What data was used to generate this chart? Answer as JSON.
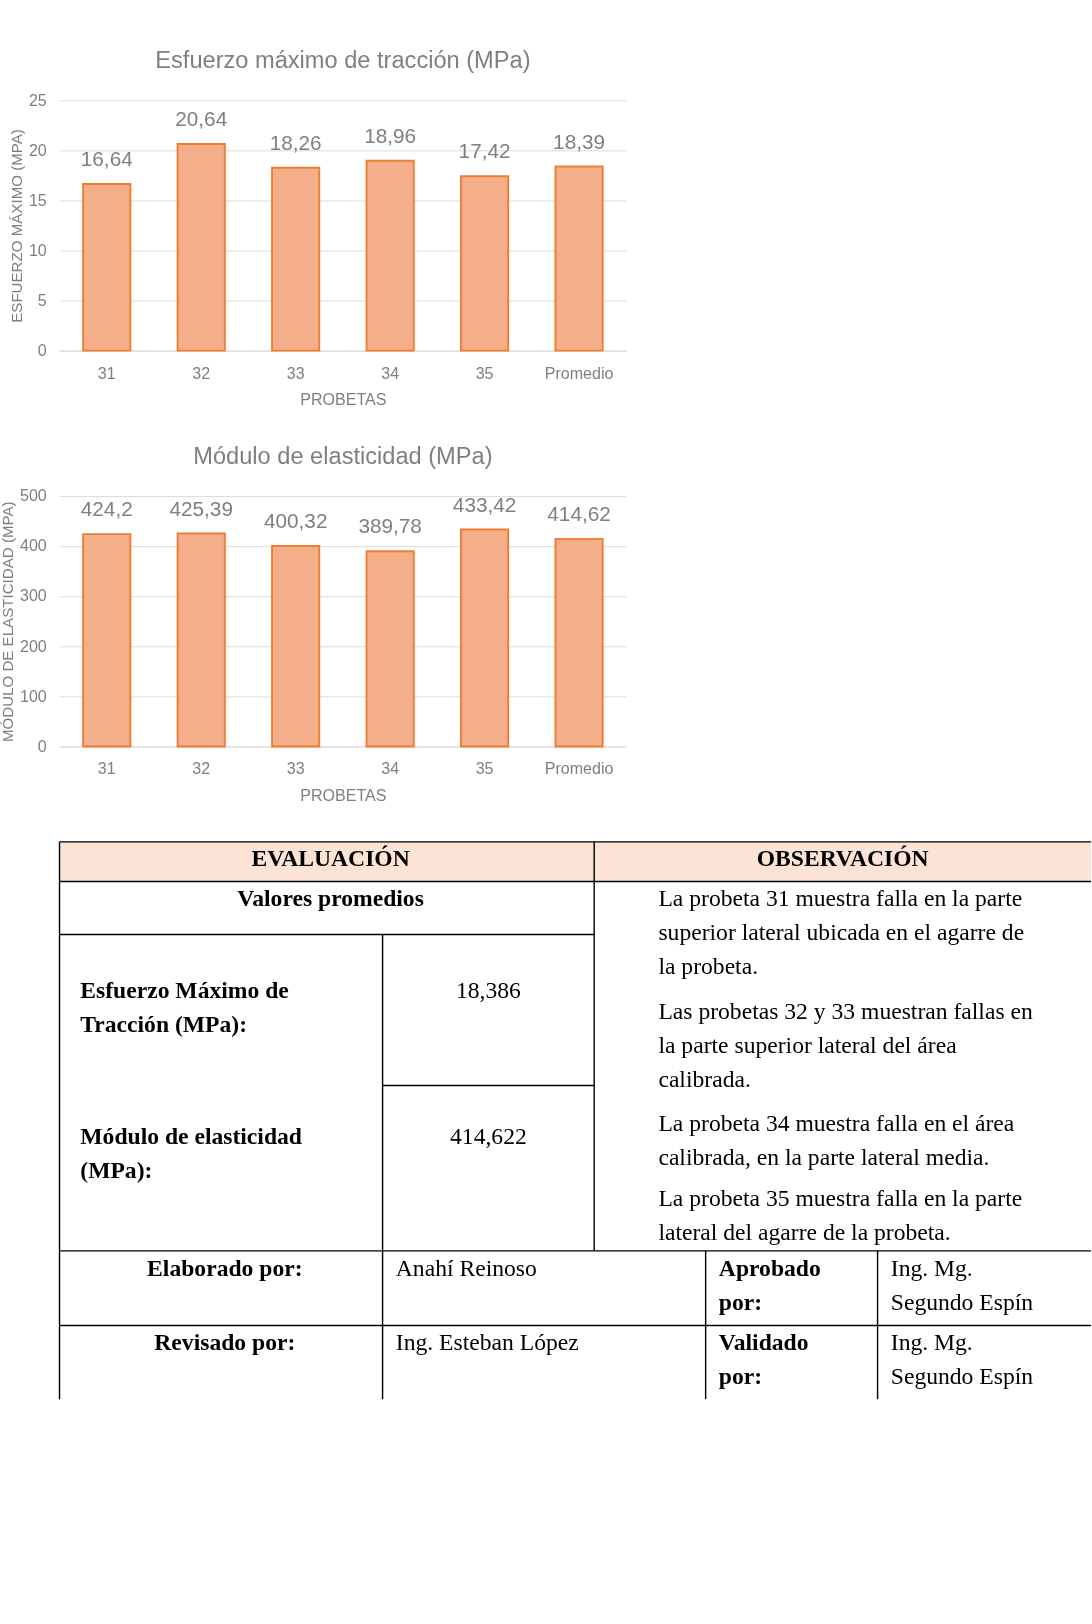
{
  "chart_data": [
    {
      "type": "bar",
      "title": "Esfuerzo máximo de tracción (MPa)",
      "xlabel": "PROBETAS",
      "ylabel": "ESFUERZO MÁXIMO (MPA)",
      "categories": [
        "31",
        "32",
        "33",
        "34",
        "35",
        "Promedio"
      ],
      "values": [
        16.64,
        20.64,
        18.26,
        18.96,
        17.42,
        18.39
      ],
      "value_labels": [
        "16,64",
        "20,64",
        "18,26",
        "18,96",
        "17,42",
        "18,39"
      ],
      "color": "#f5ae8a",
      "ylim": [
        0,
        25
      ],
      "yticks": [
        0,
        5,
        10,
        15,
        20,
        25
      ],
      "grid": "y"
    },
    {
      "type": "bar",
      "title": "Módulo de elasticidad (MPa)",
      "xlabel": "PROBETAS",
      "ylabel": "MÓDULO DE ELASTICIDAD (MPA)",
      "categories": [
        "31",
        "32",
        "33",
        "34",
        "35",
        "Promedio"
      ],
      "values": [
        424.2,
        425.39,
        400.32,
        389.78,
        433.42,
        414.62
      ],
      "value_labels": [
        "424,2",
        "425,39",
        "400,32",
        "389,78",
        "433,42",
        "414,62"
      ],
      "color": "#f5ae8a",
      "ylim": [
        0,
        500
      ],
      "yticks": [
        0,
        100,
        200,
        300,
        400,
        500
      ],
      "grid": "y"
    },
    {
      "type": "other",
      "annotations": [
        "EVALUACIÓN",
        "OBSERVACIÓN",
        "Valores promedios",
        "Esfuerzo Máximo de Tracción (MPa):",
        "18,386",
        "Módulo de elasticidad (MPa):",
        "414,622",
        "La probeta 31 muestra falla en la parte superior lateral ubicada en el agarre de la probeta.",
        "Las probetas 32 y 33 muestran fallas en la parte superior lateral del área calibrada.",
        "La probeta 34 muestra falla en el área calibrada, en la parte lateral media.",
        "La probeta 35 muestra falla en la parte lateral del agarre de la probeta.",
        "Elaborado por:",
        "Anahí Reinoso",
        "Aprobado por:",
        "Ing. Mg. Segundo Espín",
        "Revisado por:",
        "Ing. Esteban López",
        "Validado por:",
        "Ing. Mg. Segundo Espín"
      ]
    }
  ]
}
